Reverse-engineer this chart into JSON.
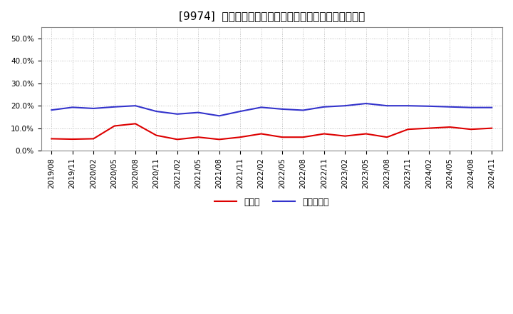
{
  "title": "[9974]  現預金、有利子負債の総資産に対する比率の推移",
  "ylim": [
    0.0,
    0.55
  ],
  "yticks": [
    0.0,
    0.1,
    0.2,
    0.3,
    0.4,
    0.5
  ],
  "xtick_labels": [
    "2019/08",
    "2019/11",
    "2020/02",
    "2020/05",
    "2020/08",
    "2020/11",
    "2021/02",
    "2021/05",
    "2021/08",
    "2021/11",
    "2022/02",
    "2022/05",
    "2022/08",
    "2022/11",
    "2023/02",
    "2023/05",
    "2023/08",
    "2023/11",
    "2024/02",
    "2024/05",
    "2024/08",
    "2024/11"
  ],
  "cash_color": "#dd0000",
  "debt_color": "#3333cc",
  "cash_label": "現預金",
  "debt_label": "有利子負債",
  "background_color": "#ffffff",
  "plot_bg_color": "#ffffff",
  "grid_color": "#aaaaaa",
  "cash_values": [
    0.053,
    0.051,
    0.053,
    0.11,
    0.12,
    0.068,
    0.05,
    0.06,
    0.05,
    0.06,
    0.075,
    0.06,
    0.06,
    0.075,
    0.065,
    0.075,
    0.06,
    0.095,
    0.1,
    0.105,
    0.095,
    0.1
  ],
  "debt_values": [
    0.181,
    0.193,
    0.188,
    0.195,
    0.2,
    0.175,
    0.163,
    0.17,
    0.155,
    0.175,
    0.193,
    0.185,
    0.18,
    0.195,
    0.2,
    0.21,
    0.2,
    0.2,
    0.198,
    0.195,
    0.192,
    0.192
  ],
  "title_fontsize": 11,
  "legend_fontsize": 9,
  "tick_fontsize": 7.5
}
